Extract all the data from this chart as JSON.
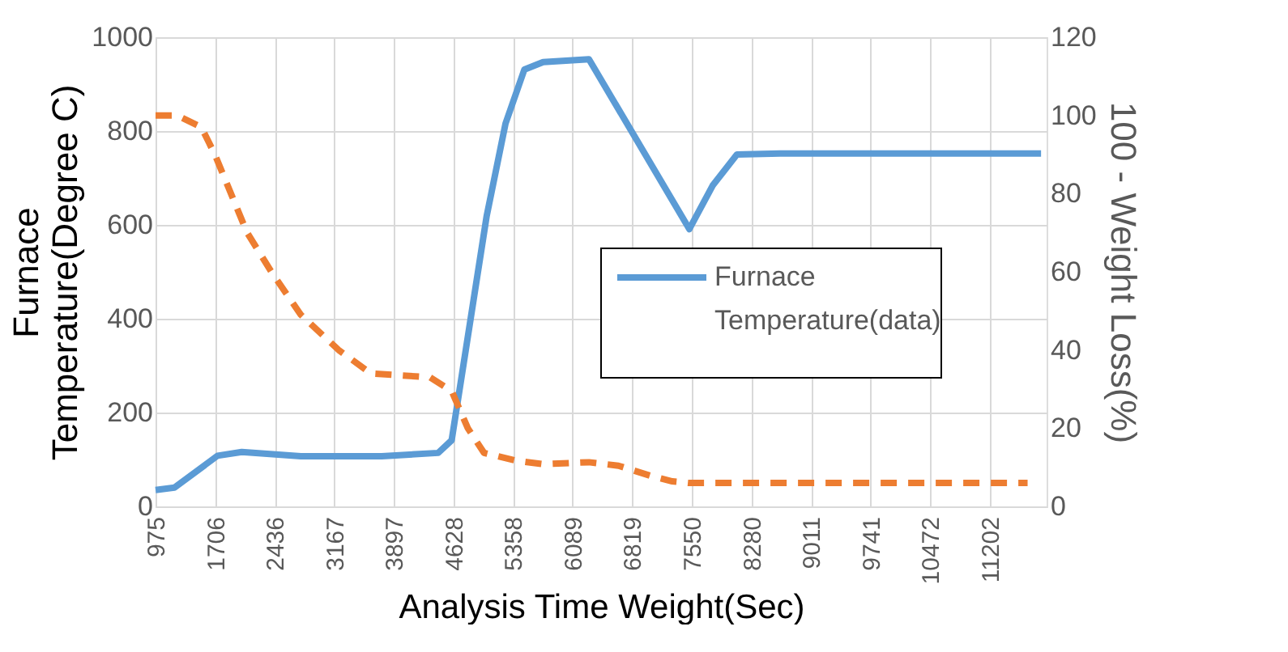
{
  "chart_data": {
    "type": "line",
    "xlabel": "Analysis Time Weight(Sec)",
    "ylabel": "Furnace Temperature(Degree C)",
    "y2label": "100 - Weight Loss(%)",
    "xlim": [
      975,
      11900
    ],
    "xticks": [
      975,
      1706,
      2436,
      3167,
      3897,
      4628,
      5358,
      6089,
      6819,
      7550,
      8280,
      9011,
      9741,
      10472,
      11202
    ],
    "ylim": [
      0,
      1000
    ],
    "yticks": [
      0,
      200,
      400,
      600,
      800,
      1000
    ],
    "y2lim": [
      0,
      120
    ],
    "y2ticks": [
      0,
      20,
      40,
      60,
      80,
      100,
      120
    ],
    "grid": true,
    "legend": "right",
    "marker": "none",
    "series": [
      {
        "name": "Furnace Temperature(data)",
        "color": "#5b9bd5",
        "line_style": "solid",
        "x": [
          975,
          1207,
          1735,
          2032,
          2757,
          3747,
          4440,
          4606,
          5034,
          5266,
          5497,
          5727,
          6289,
          7520,
          7806,
          8103,
          8632,
          11832
        ],
        "values": [
          35,
          40,
          108,
          116,
          107,
          107,
          114,
          141,
          618,
          816,
          931,
          947,
          953,
          591,
          684,
          750,
          752,
          752
        ]
      },
      {
        "color": "#ed7d31",
        "line_style": "dashed",
        "axis": "y2",
        "x": [
          975,
          1240,
          1537,
          1702,
          2098,
          2395,
          2757,
          3220,
          3616,
          4341,
          4606,
          4804,
          5002,
          5398,
          5727,
          6289,
          6651,
          7048,
          7311,
          7509,
          11667
        ],
        "values": [
          100,
          100,
          97,
          90,
          70,
          60,
          49,
          40,
          34,
          33,
          29.5,
          20,
          13.7,
          11.7,
          10.8,
          11.3,
          10.4,
          7.8,
          6.4,
          6,
          6
        ]
      }
    ]
  }
}
